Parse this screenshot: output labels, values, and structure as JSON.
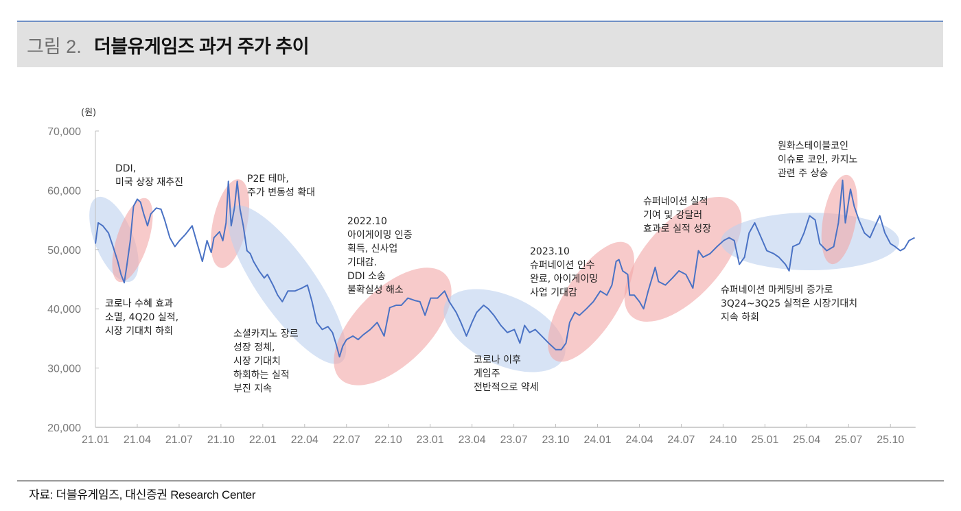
{
  "header": {
    "figure_label": "그림 2.",
    "title": "더블유게임즈 과거 주가 추이"
  },
  "footer": {
    "source": "자료: 더블유게임즈, 대신증권 Research Center"
  },
  "colors": {
    "line": "#4a72c4",
    "highlight_up": "#f2a7a7",
    "highlight_down": "#bcd0ee",
    "axis": "#bfbfbf",
    "tick_text": "#7a7a7a"
  },
  "annotations": {
    "ddi": [
      "DDI,",
      "미국 상장 재추진"
    ],
    "p2e": [
      "P2E 테마,",
      "주가 변동성 확대"
    ],
    "igaming_2022": [
      "2022.10",
      "아이게이밍 인증",
      "획득, 신사업",
      "기대감.",
      "DDI 소송",
      "불확실성 해소"
    ],
    "covid_end": [
      "코로나 수혜 효과",
      "소멸, 4Q20 실적,",
      "시장 기대치 하회"
    ],
    "social_casino": [
      "소셜카지노 장르",
      "성장 정체,",
      "시장 기대치",
      "하회하는 실적",
      "부진 지속"
    ],
    "post_covid": [
      "코로나 이후",
      "게임주",
      "전반적으로 약세"
    ],
    "supernation_2023": [
      "2023.10",
      "슈퍼네이션 인수",
      "완료, 아이게이밍",
      "사업 기대감"
    ],
    "supernation_growth": [
      "슈퍼네이션 실적",
      "기여 및 강달러",
      "효과로 실적 성장"
    ],
    "marketing": [
      "슈퍼네이션 마케팅비 증가로",
      "3Q24~3Q25 실적은 시장기대치",
      "지속 하회"
    ],
    "stablecoin": [
      "원화스테이블코인",
      "이슈로 코인, 카지노",
      "관련 주 상승"
    ]
  },
  "chart_data": {
    "type": "line",
    "title": "더블유게임즈 과거 주가 추이",
    "ylabel": "(원)",
    "xlabel": "",
    "ylim": [
      20000,
      70000
    ],
    "yticks": [
      "20,000",
      "30,000",
      "40,000",
      "50,000",
      "60,000",
      "70,000"
    ],
    "ytick_values": [
      20000,
      30000,
      40000,
      50000,
      60000,
      70000
    ],
    "xticks": [
      "21.01",
      "21.04",
      "21.07",
      "21.10",
      "22.01",
      "22.04",
      "22.07",
      "22.10",
      "23.01",
      "23.04",
      "23.07",
      "23.10",
      "24.01",
      "24.04",
      "24.07",
      "24.10",
      "25.01",
      "25.04",
      "25.07",
      "25.10"
    ],
    "xlim": [
      "2021-01-01",
      "2025-11-25"
    ],
    "grid": false,
    "series": [
      {
        "dates": [
          "2021-01-01",
          "2021-01-07",
          "2021-01-17",
          "2021-01-29",
          "2021-02-09",
          "2021-02-19",
          "2021-02-26",
          "2021-03-03",
          "2021-03-08",
          "2021-03-16",
          "2021-03-23",
          "2021-04-01",
          "2021-04-08",
          "2021-04-15",
          "2021-04-23",
          "2021-04-30",
          "2021-05-12",
          "2021-05-22",
          "2021-05-30",
          "2021-06-11",
          "2021-06-22",
          "2021-07-02",
          "2021-07-14",
          "2021-07-29",
          "2021-08-10",
          "2021-08-21",
          "2021-09-01",
          "2021-09-10",
          "2021-09-16",
          "2021-09-28",
          "2021-10-05",
          "2021-10-12",
          "2021-10-17",
          "2021-10-23",
          "2021-10-30",
          "2021-11-06",
          "2021-11-12",
          "2021-11-19",
          "2021-11-27",
          "2021-12-04",
          "2021-12-11",
          "2021-12-23",
          "2022-01-04",
          "2022-01-11",
          "2022-01-23",
          "2022-02-03",
          "2022-02-13",
          "2022-02-25",
          "2022-03-10",
          "2022-03-25",
          "2022-04-07",
          "2022-04-17",
          "2022-04-27",
          "2022-05-09",
          "2022-05-21",
          "2022-06-01",
          "2022-06-08",
          "2022-06-16",
          "2022-06-23",
          "2022-07-01",
          "2022-07-15",
          "2022-07-26",
          "2022-08-07",
          "2022-08-22",
          "2022-09-07",
          "2022-09-22",
          "2022-10-04",
          "2022-10-18",
          "2022-10-29",
          "2022-11-13",
          "2022-11-28",
          "2022-12-09",
          "2022-12-20",
          "2023-01-02",
          "2023-01-17",
          "2023-02-02",
          "2023-02-12",
          "2023-02-27",
          "2023-03-07",
          "2023-03-19",
          "2023-04-01",
          "2023-04-11",
          "2023-04-26",
          "2023-05-06",
          "2023-05-18",
          "2023-06-03",
          "2023-06-17",
          "2023-07-02",
          "2023-07-14",
          "2023-07-24",
          "2023-08-05",
          "2023-08-17",
          "2023-09-01",
          "2023-09-16",
          "2023-10-01",
          "2023-10-13",
          "2023-10-23",
          "2023-11-01",
          "2023-11-12",
          "2023-11-22",
          "2023-12-07",
          "2023-12-22",
          "2024-01-07",
          "2024-01-21",
          "2024-02-02",
          "2024-02-11",
          "2024-02-17",
          "2024-02-25",
          "2024-03-06",
          "2024-03-10",
          "2024-03-20",
          "2024-04-01",
          "2024-04-10",
          "2024-04-20",
          "2024-05-05",
          "2024-05-12",
          "2024-05-27",
          "2024-06-12",
          "2024-06-26",
          "2024-07-11",
          "2024-07-26",
          "2024-08-08",
          "2024-08-18",
          "2024-09-03",
          "2024-09-18",
          "2024-10-02",
          "2024-10-14",
          "2024-10-25",
          "2024-11-06",
          "2024-11-17",
          "2024-11-27",
          "2024-12-09",
          "2024-12-23",
          "2025-01-05",
          "2025-01-20",
          "2025-02-01",
          "2025-02-15",
          "2025-02-23",
          "2025-03-01",
          "2025-03-15",
          "2025-03-25",
          "2025-04-07",
          "2025-04-19",
          "2025-04-29",
          "2025-05-14",
          "2025-05-29",
          "2025-06-09",
          "2025-06-18",
          "2025-06-24",
          "2025-07-05",
          "2025-07-13",
          "2025-07-23",
          "2025-08-05",
          "2025-08-17",
          "2025-08-27",
          "2025-09-08",
          "2025-09-19",
          "2025-10-01",
          "2025-10-11",
          "2025-10-22",
          "2025-11-01",
          "2025-11-11",
          "2025-11-23"
        ],
        "values": [
          51000,
          54500,
          54000,
          52800,
          50500,
          48000,
          45800,
          44400,
          47000,
          51500,
          57300,
          58500,
          58000,
          56000,
          54000,
          56000,
          57000,
          56800,
          55000,
          52000,
          50500,
          51500,
          52500,
          54000,
          51000,
          48000,
          51500,
          49500,
          52000,
          53000,
          51500,
          54500,
          61500,
          54000,
          57000,
          61500,
          56800,
          54000,
          49800,
          49300,
          48000,
          46400,
          45200,
          45800,
          44000,
          42300,
          41200,
          43000,
          43000,
          43500,
          44000,
          41200,
          37700,
          36500,
          37000,
          36000,
          34200,
          31900,
          33700,
          34800,
          35400,
          34800,
          35600,
          36500,
          37700,
          35400,
          40200,
          40600,
          40600,
          41800,
          41400,
          41200,
          38900,
          41800,
          41800,
          43000,
          41200,
          39400,
          37700,
          35400,
          37700,
          39400,
          40600,
          40000,
          38900,
          37200,
          36000,
          36500,
          34200,
          37200,
          36000,
          36500,
          35400,
          34200,
          33100,
          33100,
          34200,
          37700,
          39400,
          38900,
          40000,
          41200,
          43000,
          42300,
          44000,
          48000,
          48300,
          46400,
          45800,
          42300,
          42300,
          41200,
          40000,
          43000,
          47000,
          44600,
          44000,
          45200,
          46400,
          45800,
          43500,
          49800,
          48700,
          49300,
          50500,
          51500,
          52000,
          51500,
          47500,
          48700,
          52800,
          54500,
          52000,
          49800,
          49300,
          48700,
          47500,
          46400,
          50500,
          51000,
          52800,
          55700,
          55000,
          51000,
          49800,
          50500,
          54500,
          61700,
          54500,
          60200,
          57300,
          55000,
          52800,
          52000,
          53800,
          55700,
          52800,
          51000,
          50500,
          49800,
          50200,
          51500,
          52000
        ]
      }
    ]
  }
}
